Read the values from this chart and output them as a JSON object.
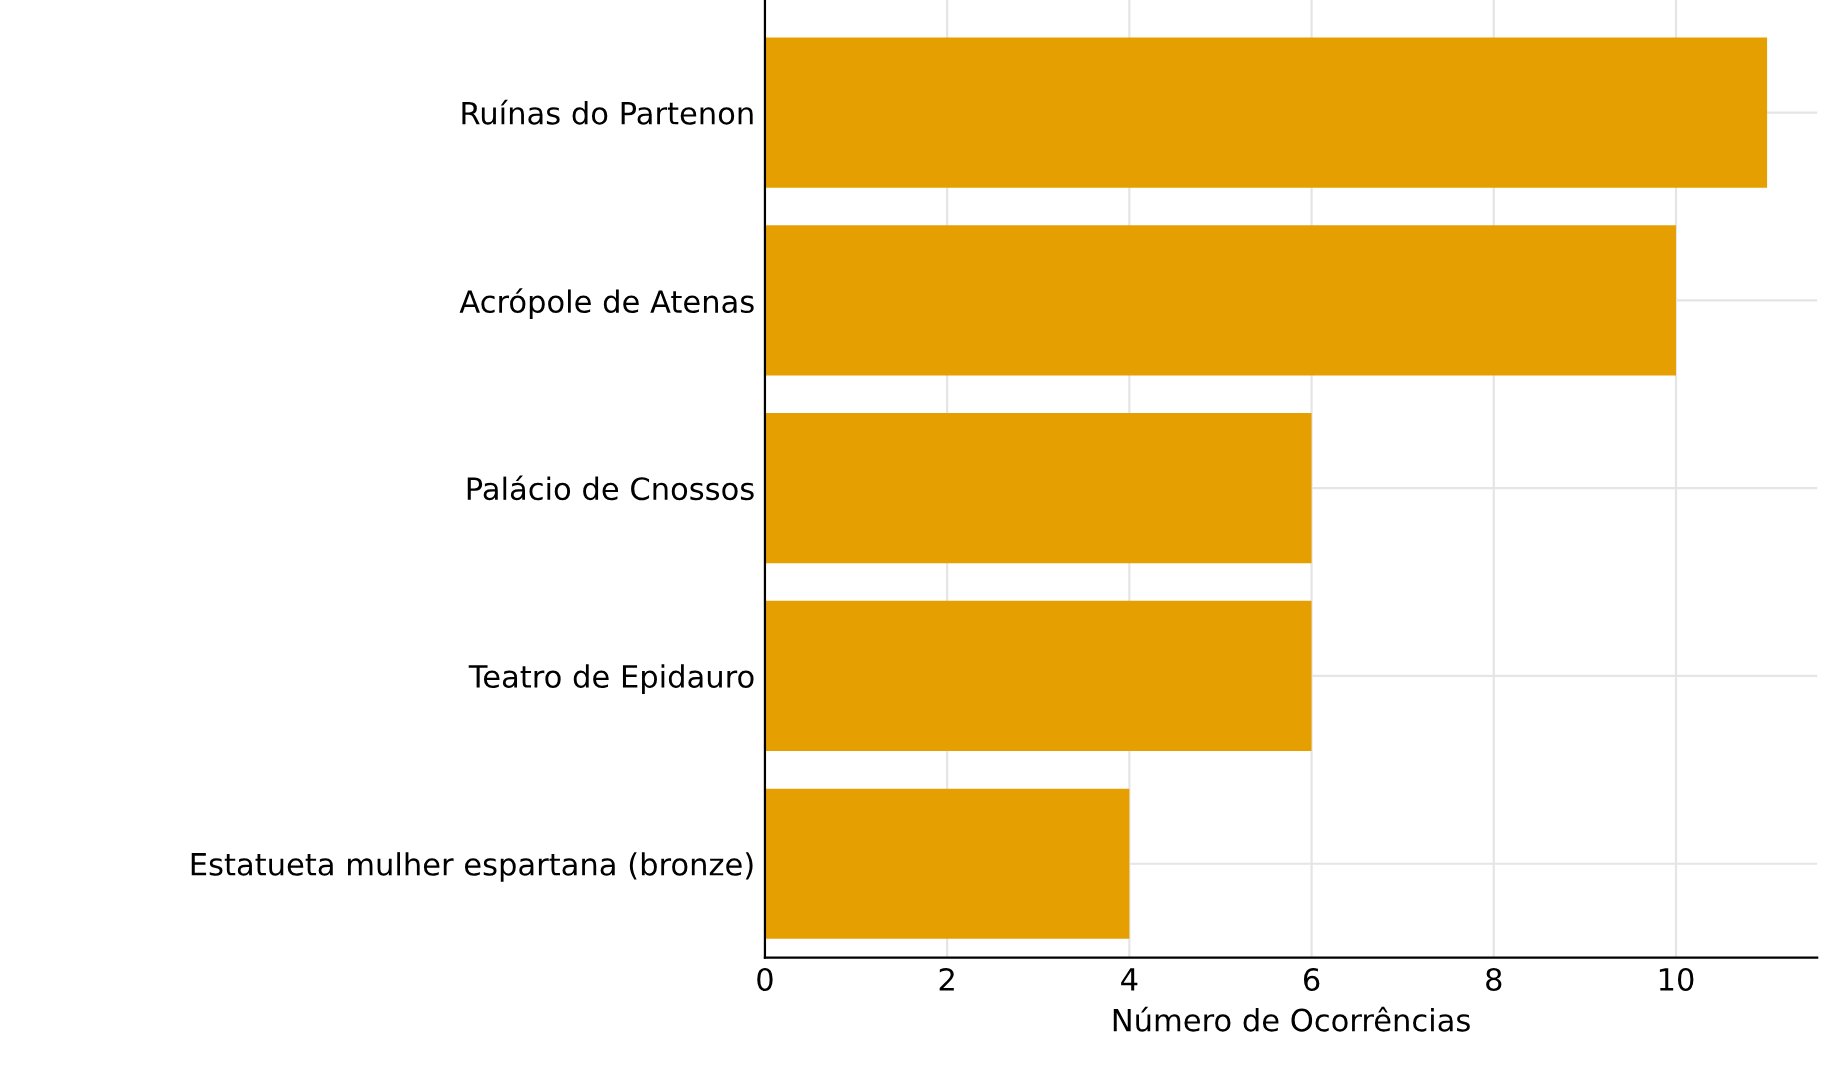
{
  "chart_data": {
    "type": "bar",
    "orientation": "horizontal",
    "xlabel": "Número de Ocorrências",
    "categories": [
      "Ruínas do Partenon",
      "Acrópole de Atenas",
      "Palácio de Cnossos",
      "Teatro de Epidauro",
      "Estatueta mulher espartana (bronze)"
    ],
    "values": [
      11,
      10,
      6,
      6,
      4
    ],
    "color": "#e69f00",
    "xlim": [
      0,
      11.55
    ],
    "xticks": [
      0,
      2,
      4,
      6,
      8,
      10
    ],
    "grid": true
  }
}
